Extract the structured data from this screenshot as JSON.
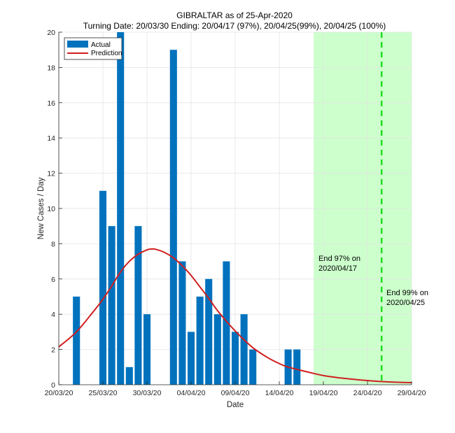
{
  "chart_data": {
    "type": "bar",
    "title": "GIBRALTAR as of 25-Apr-2020",
    "subtitle": "Turning Date: 20/03/30  Ending: 20/04/17 (97%), 20/04/25(99%), 20/04/25 (100%)",
    "xlabel": "Date",
    "ylabel": "New Cases / Day",
    "x_start": "2020-03-20",
    "x_end": "2020-04-29",
    "ylim": [
      0,
      20
    ],
    "grid": true,
    "legend_position": "top-left",
    "x_ticks": [
      "20/03/20",
      "25/03/20",
      "30/03/20",
      "04/04/20",
      "09/04/20",
      "14/04/20",
      "19/04/20",
      "24/04/20",
      "29/04/20"
    ],
    "x_tick_days": [
      0,
      5,
      10,
      15,
      20,
      25,
      30,
      35,
      40
    ],
    "y_ticks": [
      0,
      2,
      4,
      6,
      8,
      10,
      12,
      14,
      16,
      18,
      20
    ],
    "series": [
      {
        "name": "Actual",
        "kind": "bar",
        "color": "#0072BD",
        "points": [
          {
            "date": "22/03",
            "day": 2,
            "value": 5
          },
          {
            "date": "25/03",
            "day": 5,
            "value": 11
          },
          {
            "date": "26/03",
            "day": 6,
            "value": 9
          },
          {
            "date": "27/03",
            "day": 7,
            "value": 20
          },
          {
            "date": "28/03",
            "day": 8,
            "value": 1
          },
          {
            "date": "29/03",
            "day": 9,
            "value": 9
          },
          {
            "date": "30/03",
            "day": 10,
            "value": 4
          },
          {
            "date": "02/04",
            "day": 13,
            "value": 19
          },
          {
            "date": "03/04",
            "day": 14,
            "value": 7
          },
          {
            "date": "04/04",
            "day": 15,
            "value": 3
          },
          {
            "date": "05/04",
            "day": 16,
            "value": 5
          },
          {
            "date": "06/04",
            "day": 17,
            "value": 6
          },
          {
            "date": "07/04",
            "day": 18,
            "value": 4
          },
          {
            "date": "08/04",
            "day": 19,
            "value": 7
          },
          {
            "date": "09/04",
            "day": 20,
            "value": 3
          },
          {
            "date": "10/04",
            "day": 21,
            "value": 4
          },
          {
            "date": "11/04",
            "day": 22,
            "value": 2
          },
          {
            "date": "15/04",
            "day": 26,
            "value": 2
          },
          {
            "date": "16/04",
            "day": 27,
            "value": 2
          }
        ]
      },
      {
        "name": "Prediction",
        "kind": "line",
        "color": "#D01F1F",
        "days": [
          0,
          2,
          4,
          5,
          6,
          7,
          8,
          9,
          10,
          10.5,
          11,
          12,
          13,
          14,
          15,
          16,
          17,
          18,
          19,
          20,
          21,
          22,
          23,
          24,
          25,
          26,
          28,
          30,
          32,
          34,
          36,
          38,
          40
        ],
        "values": [
          2.15,
          3.0,
          4.2,
          4.85,
          5.6,
          6.4,
          7.0,
          7.4,
          7.65,
          7.7,
          7.68,
          7.5,
          7.2,
          6.75,
          6.2,
          5.55,
          4.9,
          4.2,
          3.6,
          3.05,
          2.55,
          2.1,
          1.75,
          1.45,
          1.2,
          1.0,
          0.75,
          0.52,
          0.38,
          0.28,
          0.2,
          0.15,
          0.12
        ]
      }
    ],
    "shaded_region": {
      "from_day": 28.9,
      "to_day": 40,
      "color": "#CCFFCC",
      "meaning": "ending period"
    },
    "vline": {
      "day": 36.6,
      "color": "#22DD22",
      "style": "dashed"
    },
    "annotations": [
      {
        "line1": "End 97% on",
        "line2": "2020/04/17"
      },
      {
        "line1": "End 99% on",
        "line2": "2020/04/25"
      }
    ]
  }
}
